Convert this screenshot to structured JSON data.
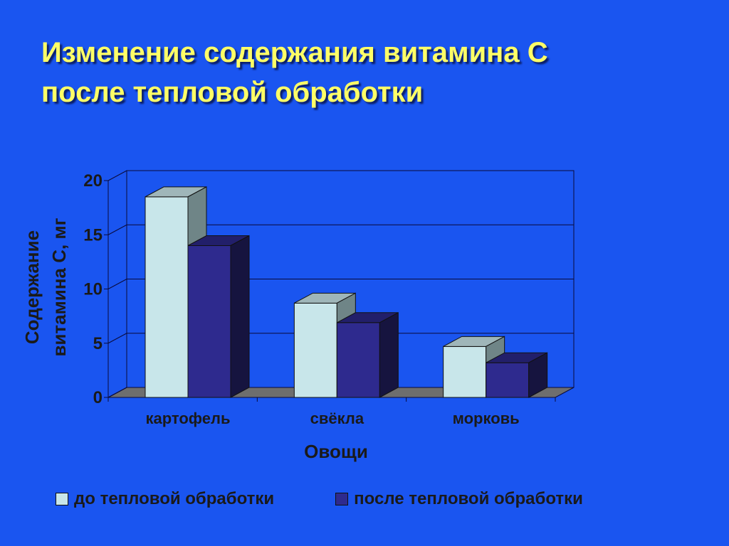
{
  "title": {
    "line1": "Изменение содержания витамина С",
    "line2": "после тепловой обработки"
  },
  "colors": {
    "background": "#1a55f0",
    "before_front": "#c8e6ea",
    "before_top": "#9fb6b9",
    "before_side": "#6f8587",
    "after_front": "#2e2a8e",
    "after_top": "#221f6a",
    "after_side": "#16143f",
    "floor": "#6e6e6e",
    "grid": "#0a0a3a"
  },
  "chart_data": {
    "type": "bar",
    "categories": [
      "картофель",
      "свёкла",
      "морковь"
    ],
    "series": [
      {
        "name": "до тепловой обработки",
        "values": [
          18.5,
          8.7,
          4.7
        ]
      },
      {
        "name": "после тепловой обработки",
        "values": [
          14.0,
          6.9,
          3.2
        ]
      }
    ],
    "xlabel": "Овощи",
    "ylabel_line1": "Содержание",
    "ylabel_line2": "витамина С, мг",
    "ylim": [
      0,
      20
    ],
    "yticks": [
      "0",
      "5",
      "10",
      "15",
      "20"
    ],
    "grid": true,
    "legend_position": "bottom",
    "three_d": true
  }
}
